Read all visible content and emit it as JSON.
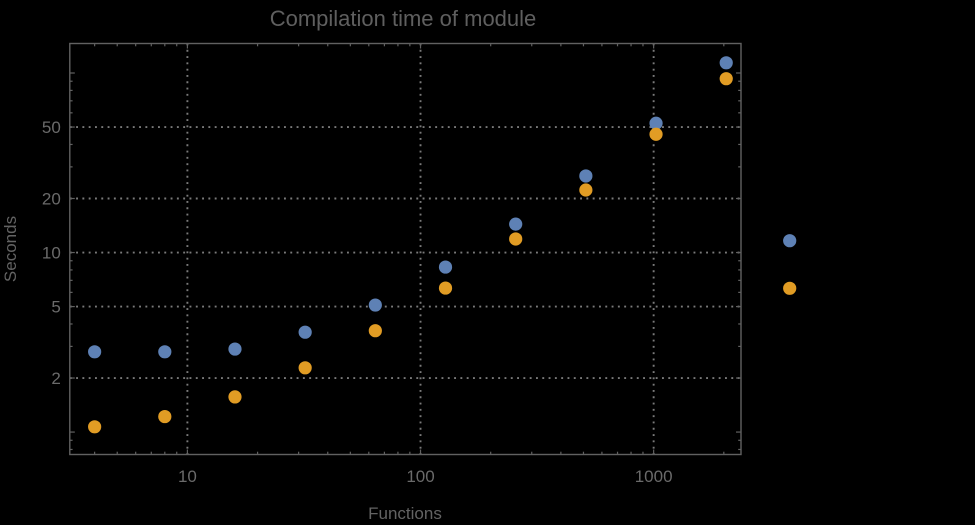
{
  "chart_data": {
    "type": "scatter",
    "title": "Compilation time of module",
    "xlabel": "Functions",
    "ylabel": "Seconds",
    "x_scale": "log",
    "y_scale": "log",
    "xlim": [
      3.13,
      2370
    ],
    "ylim": [
      0.75,
      146
    ],
    "x_ticks_labeled": [
      10,
      100,
      1000
    ],
    "y_ticks_labeled": [
      2,
      5,
      10,
      20,
      50
    ],
    "grid": {
      "style": "dotted",
      "color": "#7a7a7a",
      "x_values": [
        10,
        100,
        1000
      ],
      "y_values": [
        2,
        5,
        10,
        20,
        50
      ]
    },
    "x": [
      4,
      8,
      16,
      32,
      64,
      128,
      256,
      512,
      1024,
      2048
    ],
    "series": [
      {
        "name": "blue-series",
        "color": "#5e81b5",
        "values": [
          2.8,
          2.8,
          2.9,
          3.6,
          5.1,
          8.3,
          14.4,
          26.7,
          52.5,
          114
        ]
      },
      {
        "name": "orange-series",
        "color": "#e19c24",
        "values": [
          1.07,
          1.22,
          1.57,
          2.28,
          3.67,
          6.34,
          11.9,
          22.3,
          45.6,
          93
        ]
      }
    ],
    "legend": {
      "position": "right-outside",
      "labels_visible": false,
      "entries": [
        {
          "marker_color": "#5e81b5",
          "label": ""
        },
        {
          "marker_color": "#e19c24",
          "label": ""
        }
      ]
    },
    "colors": {
      "background": "#000000",
      "frame": "#616161",
      "title_text": "#5f5f5f",
      "axis_label_text": "#636363",
      "tick_label_text": "#6a6a6a"
    }
  }
}
